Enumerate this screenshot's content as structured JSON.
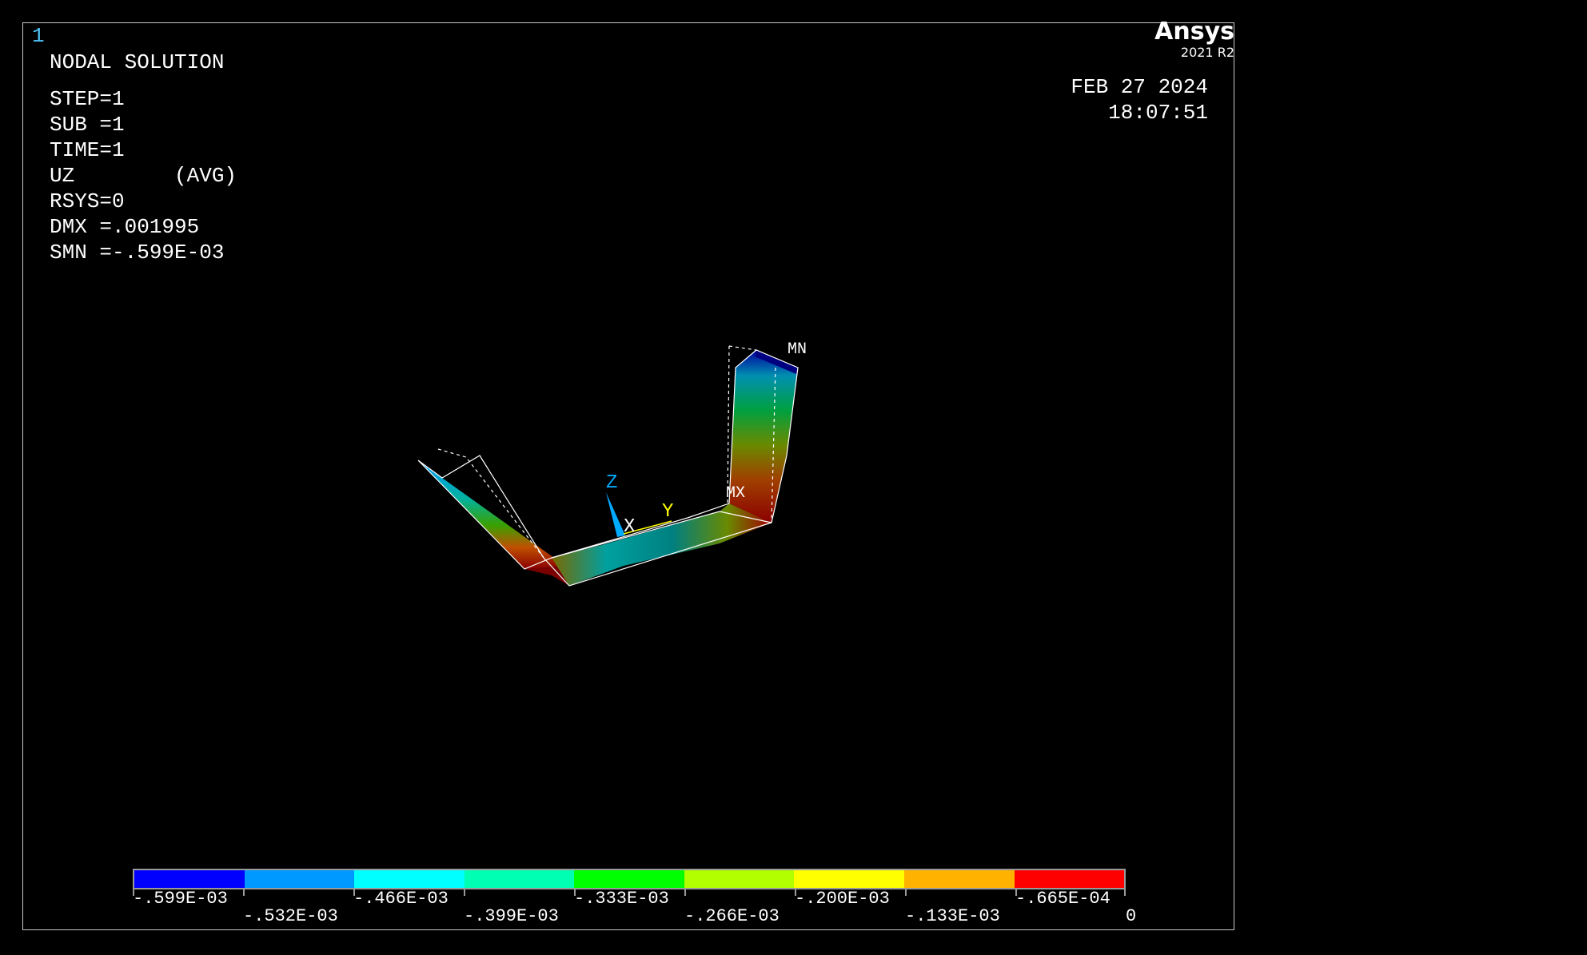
{
  "window_number": "1",
  "brand": {
    "name": "Ansys",
    "version": "2021 R2"
  },
  "datetime": {
    "date": "FEB 27 2024",
    "time": "18:07:51"
  },
  "info": {
    "title": "NODAL SOLUTION",
    "lines": [
      "STEP=1",
      "SUB =1",
      "TIME=1",
      "UZ        (AVG)",
      "RSYS=0",
      "DMX =.001995",
      "SMN =-.599E-03"
    ]
  },
  "model_labels": {
    "mn": "MN",
    "mx": "MX",
    "axis_x": "X",
    "axis_y": "Y",
    "axis_z": "Z"
  },
  "legend": {
    "colors": [
      "#0000ff",
      "#0099ff",
      "#00ffff",
      "#00ffb2",
      "#00ff00",
      "#b2ff00",
      "#ffff00",
      "#ffb200",
      "#ff0000"
    ],
    "labels_top": [
      "-.599E-03",
      "-.466E-03",
      "-.333E-03",
      "-.200E-03",
      "-.665E-04"
    ],
    "labels_bottom": [
      "-.532E-03",
      "-.399E-03",
      "-.266E-03",
      "-.133E-03",
      "0"
    ]
  },
  "colors": {
    "frame": "#c8c8c8",
    "accent": "#4fc3f7"
  }
}
